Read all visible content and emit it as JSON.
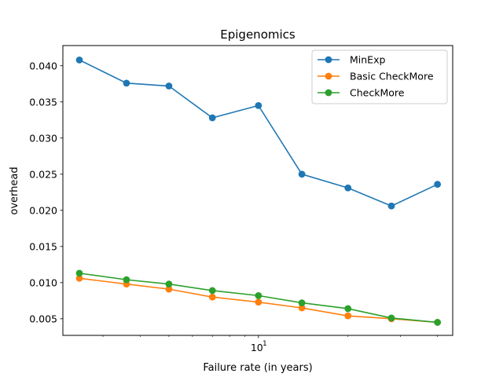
{
  "chart_data": {
    "type": "line",
    "title": "Epigenomics",
    "xlabel": "Failure rate (in years)",
    "ylabel": "overhead",
    "xscale": "log",
    "x": [
      2.5,
      3.6,
      5,
      7,
      10,
      14,
      20,
      28,
      40
    ],
    "xlim": [
      2.2,
      45
    ],
    "ylim": [
      0.0027,
      0.0428
    ],
    "yticks": [
      0.005,
      0.01,
      0.015,
      0.02,
      0.025,
      0.03,
      0.035,
      0.04
    ],
    "ytick_labels": [
      "0.005",
      "0.010",
      "0.015",
      "0.020",
      "0.025",
      "0.030",
      "0.035",
      "0.040"
    ],
    "xtick_major_label": "10",
    "xtick_major_exponent": "1",
    "xtick_major_value": 10,
    "xtick_minor_values": [
      3,
      4,
      5,
      6,
      7,
      8,
      9,
      20,
      30,
      40
    ],
    "grid": false,
    "legend_position": "top-right",
    "series": [
      {
        "name": "MinExp",
        "color": "#1f77b4",
        "values": [
          0.0408,
          0.0376,
          0.0372,
          0.0328,
          0.0345,
          0.025,
          0.0231,
          0.0206,
          0.0236
        ]
      },
      {
        "name": "Basic CheckMore",
        "color": "#ff7f0e",
        "values": [
          0.0106,
          0.0098,
          0.0091,
          0.008,
          0.0073,
          0.0065,
          0.0054,
          0.005,
          0.0045
        ]
      },
      {
        "name": "CheckMore",
        "color": "#2ca02c",
        "values": [
          0.0113,
          0.0104,
          0.0098,
          0.0089,
          0.0082,
          0.0072,
          0.0064,
          0.0051,
          0.0045
        ]
      }
    ]
  }
}
